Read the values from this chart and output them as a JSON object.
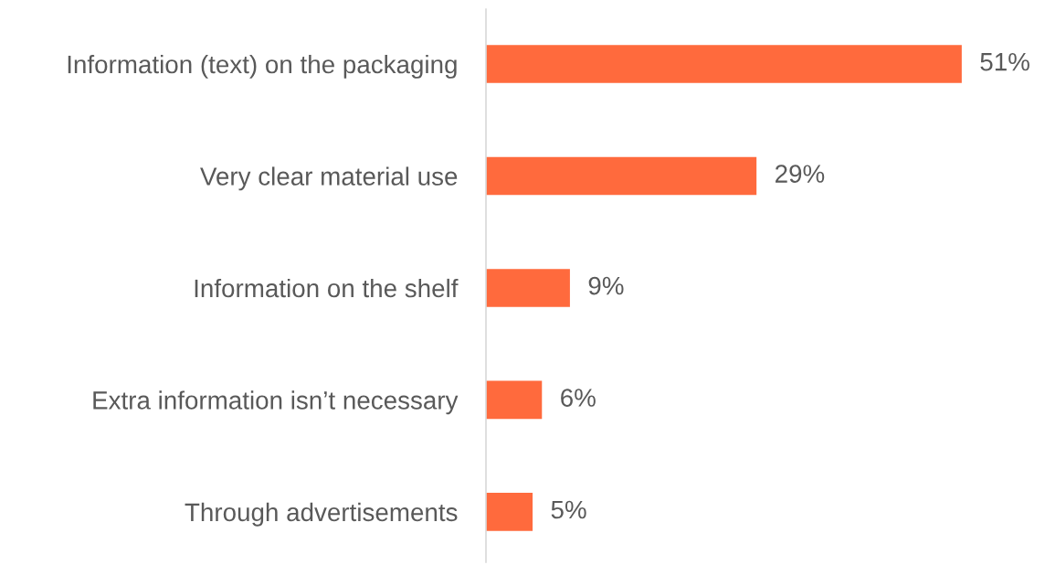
{
  "chart_data": {
    "type": "bar",
    "orientation": "horizontal",
    "categories": [
      "Information (text) on the packaging",
      "Very clear material use",
      "Information on the shelf",
      "Extra information isn’t necessary",
      "Through advertisements"
    ],
    "values": [
      51,
      29,
      9,
      6,
      5
    ],
    "value_labels": [
      "51%",
      "29%",
      "9%",
      "6%",
      "5%"
    ],
    "color": "#ff6a3d",
    "tick_labels": "y",
    "grid": false,
    "legend": false
  }
}
